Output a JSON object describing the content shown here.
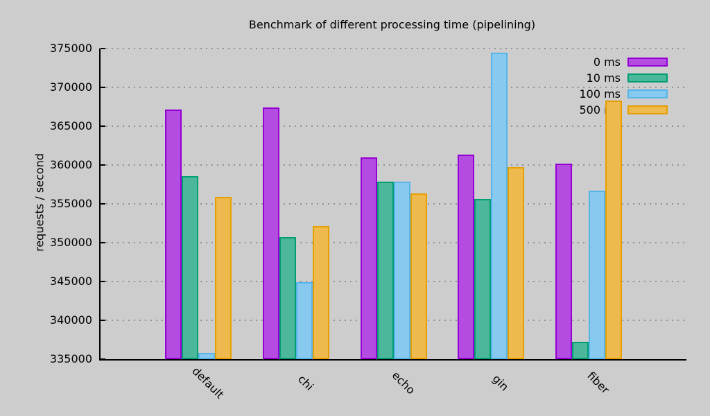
{
  "page": {
    "background": "#cdcdcd",
    "text_color": "#000000",
    "grid_color": "#929292"
  },
  "chart_data": {
    "type": "bar",
    "title": "Benchmark of different processing time (pipelining)",
    "ylabel": "requests / second",
    "xlabel": "",
    "grid": true,
    "legend_position": "top-right",
    "ylim": [
      335000,
      375000
    ],
    "ytick_step": 5000,
    "ytick_labels": [
      "335000",
      "340000",
      "345000",
      "350000",
      "355000",
      "360000",
      "365000",
      "370000",
      "375000"
    ],
    "categories": [
      "default",
      "chi",
      "echo",
      "gin",
      "fiber"
    ],
    "series": [
      {
        "name": "0 ms",
        "color": "#9400d3",
        "fill": "#b44ce1",
        "values": [
          367100,
          367400,
          361000,
          361300,
          360200
        ]
      },
      {
        "name": "10 ms",
        "color": "#009e73",
        "fill": "#4db79c",
        "values": [
          358600,
          350700,
          357900,
          355600,
          337200
        ]
      },
      {
        "name": "100 ms",
        "color": "#56b4e9",
        "fill": "#88c9f0",
        "values": [
          335800,
          344900,
          357900,
          374500,
          356700
        ]
      },
      {
        "name": "500 ms",
        "color": "#e69f00",
        "fill": "#eeba4e",
        "values": [
          355900,
          352100,
          356300,
          359700,
          368300
        ]
      }
    ]
  }
}
